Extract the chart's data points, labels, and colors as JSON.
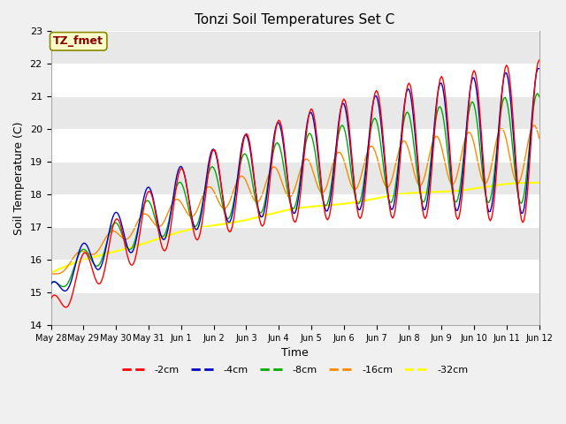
{
  "title": "Tonzi Soil Temperatures Set C",
  "xlabel": "Time",
  "ylabel": "Soil Temperature (C)",
  "ylim": [
    14.0,
    23.0
  ],
  "yticks": [
    14.0,
    15.0,
    16.0,
    17.0,
    18.0,
    19.0,
    20.0,
    21.0,
    22.0,
    23.0
  ],
  "legend_label": "TZ_fmet",
  "series_colors": {
    "-2cm": "#ff0000",
    "-4cm": "#0000cc",
    "-8cm": "#00aa00",
    "-16cm": "#ff8800",
    "-32cm": "#ffff00"
  },
  "tick_labels": [
    "May 28",
    "May 29",
    "May 30",
    "May 31",
    "Jun 1",
    "Jun 2",
    "Jun 3",
    "Jun 4",
    "Jun 5",
    "Jun 6",
    "Jun 7",
    "Jun 8",
    "Jun 9",
    "Jun 10",
    "Jun 11",
    "Jun 12"
  ],
  "fig_width": 6.4,
  "fig_height": 4.8,
  "dpi": 100
}
